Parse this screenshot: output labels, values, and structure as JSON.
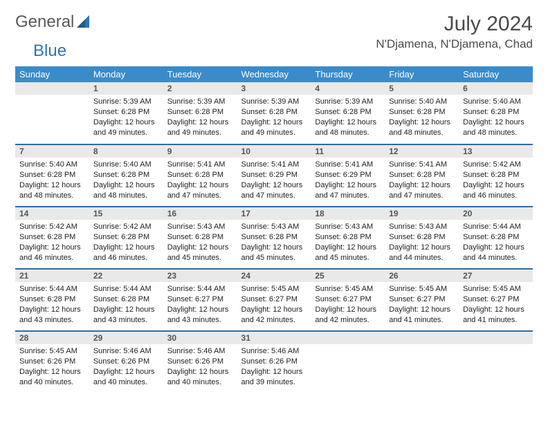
{
  "brand": {
    "part1": "General",
    "part2": "Blue"
  },
  "title": "July 2024",
  "location": "N'Djamena, N'Djamena, Chad",
  "colors": {
    "header_bg": "#3b8bc9",
    "header_text": "#ffffff",
    "row_divider": "#2e6da4",
    "daynum_bg": "#e9e9e9",
    "text": "#222222",
    "brand_gray": "#5a5a5a",
    "brand_blue": "#2e75b6"
  },
  "weekdays": [
    "Sunday",
    "Monday",
    "Tuesday",
    "Wednesday",
    "Thursday",
    "Friday",
    "Saturday"
  ],
  "weeks": [
    [
      null,
      {
        "n": "1",
        "sr": "5:39 AM",
        "ss": "6:28 PM",
        "dl": "12 hours and 49 minutes."
      },
      {
        "n": "2",
        "sr": "5:39 AM",
        "ss": "6:28 PM",
        "dl": "12 hours and 49 minutes."
      },
      {
        "n": "3",
        "sr": "5:39 AM",
        "ss": "6:28 PM",
        "dl": "12 hours and 49 minutes."
      },
      {
        "n": "4",
        "sr": "5:39 AM",
        "ss": "6:28 PM",
        "dl": "12 hours and 48 minutes."
      },
      {
        "n": "5",
        "sr": "5:40 AM",
        "ss": "6:28 PM",
        "dl": "12 hours and 48 minutes."
      },
      {
        "n": "6",
        "sr": "5:40 AM",
        "ss": "6:28 PM",
        "dl": "12 hours and 48 minutes."
      }
    ],
    [
      {
        "n": "7",
        "sr": "5:40 AM",
        "ss": "6:28 PM",
        "dl": "12 hours and 48 minutes."
      },
      {
        "n": "8",
        "sr": "5:40 AM",
        "ss": "6:28 PM",
        "dl": "12 hours and 48 minutes."
      },
      {
        "n": "9",
        "sr": "5:41 AM",
        "ss": "6:28 PM",
        "dl": "12 hours and 47 minutes."
      },
      {
        "n": "10",
        "sr": "5:41 AM",
        "ss": "6:29 PM",
        "dl": "12 hours and 47 minutes."
      },
      {
        "n": "11",
        "sr": "5:41 AM",
        "ss": "6:29 PM",
        "dl": "12 hours and 47 minutes."
      },
      {
        "n": "12",
        "sr": "5:41 AM",
        "ss": "6:28 PM",
        "dl": "12 hours and 47 minutes."
      },
      {
        "n": "13",
        "sr": "5:42 AM",
        "ss": "6:28 PM",
        "dl": "12 hours and 46 minutes."
      }
    ],
    [
      {
        "n": "14",
        "sr": "5:42 AM",
        "ss": "6:28 PM",
        "dl": "12 hours and 46 minutes."
      },
      {
        "n": "15",
        "sr": "5:42 AM",
        "ss": "6:28 PM",
        "dl": "12 hours and 46 minutes."
      },
      {
        "n": "16",
        "sr": "5:43 AM",
        "ss": "6:28 PM",
        "dl": "12 hours and 45 minutes."
      },
      {
        "n": "17",
        "sr": "5:43 AM",
        "ss": "6:28 PM",
        "dl": "12 hours and 45 minutes."
      },
      {
        "n": "18",
        "sr": "5:43 AM",
        "ss": "6:28 PM",
        "dl": "12 hours and 45 minutes."
      },
      {
        "n": "19",
        "sr": "5:43 AM",
        "ss": "6:28 PM",
        "dl": "12 hours and 44 minutes."
      },
      {
        "n": "20",
        "sr": "5:44 AM",
        "ss": "6:28 PM",
        "dl": "12 hours and 44 minutes."
      }
    ],
    [
      {
        "n": "21",
        "sr": "5:44 AM",
        "ss": "6:28 PM",
        "dl": "12 hours and 43 minutes."
      },
      {
        "n": "22",
        "sr": "5:44 AM",
        "ss": "6:28 PM",
        "dl": "12 hours and 43 minutes."
      },
      {
        "n": "23",
        "sr": "5:44 AM",
        "ss": "6:27 PM",
        "dl": "12 hours and 43 minutes."
      },
      {
        "n": "24",
        "sr": "5:45 AM",
        "ss": "6:27 PM",
        "dl": "12 hours and 42 minutes."
      },
      {
        "n": "25",
        "sr": "5:45 AM",
        "ss": "6:27 PM",
        "dl": "12 hours and 42 minutes."
      },
      {
        "n": "26",
        "sr": "5:45 AM",
        "ss": "6:27 PM",
        "dl": "12 hours and 41 minutes."
      },
      {
        "n": "27",
        "sr": "5:45 AM",
        "ss": "6:27 PM",
        "dl": "12 hours and 41 minutes."
      }
    ],
    [
      {
        "n": "28",
        "sr": "5:45 AM",
        "ss": "6:26 PM",
        "dl": "12 hours and 40 minutes."
      },
      {
        "n": "29",
        "sr": "5:46 AM",
        "ss": "6:26 PM",
        "dl": "12 hours and 40 minutes."
      },
      {
        "n": "30",
        "sr": "5:46 AM",
        "ss": "6:26 PM",
        "dl": "12 hours and 40 minutes."
      },
      {
        "n": "31",
        "sr": "5:46 AM",
        "ss": "6:26 PM",
        "dl": "12 hours and 39 minutes."
      },
      null,
      null,
      null
    ]
  ],
  "labels": {
    "sunrise": "Sunrise:",
    "sunset": "Sunset:",
    "daylight": "Daylight:"
  }
}
